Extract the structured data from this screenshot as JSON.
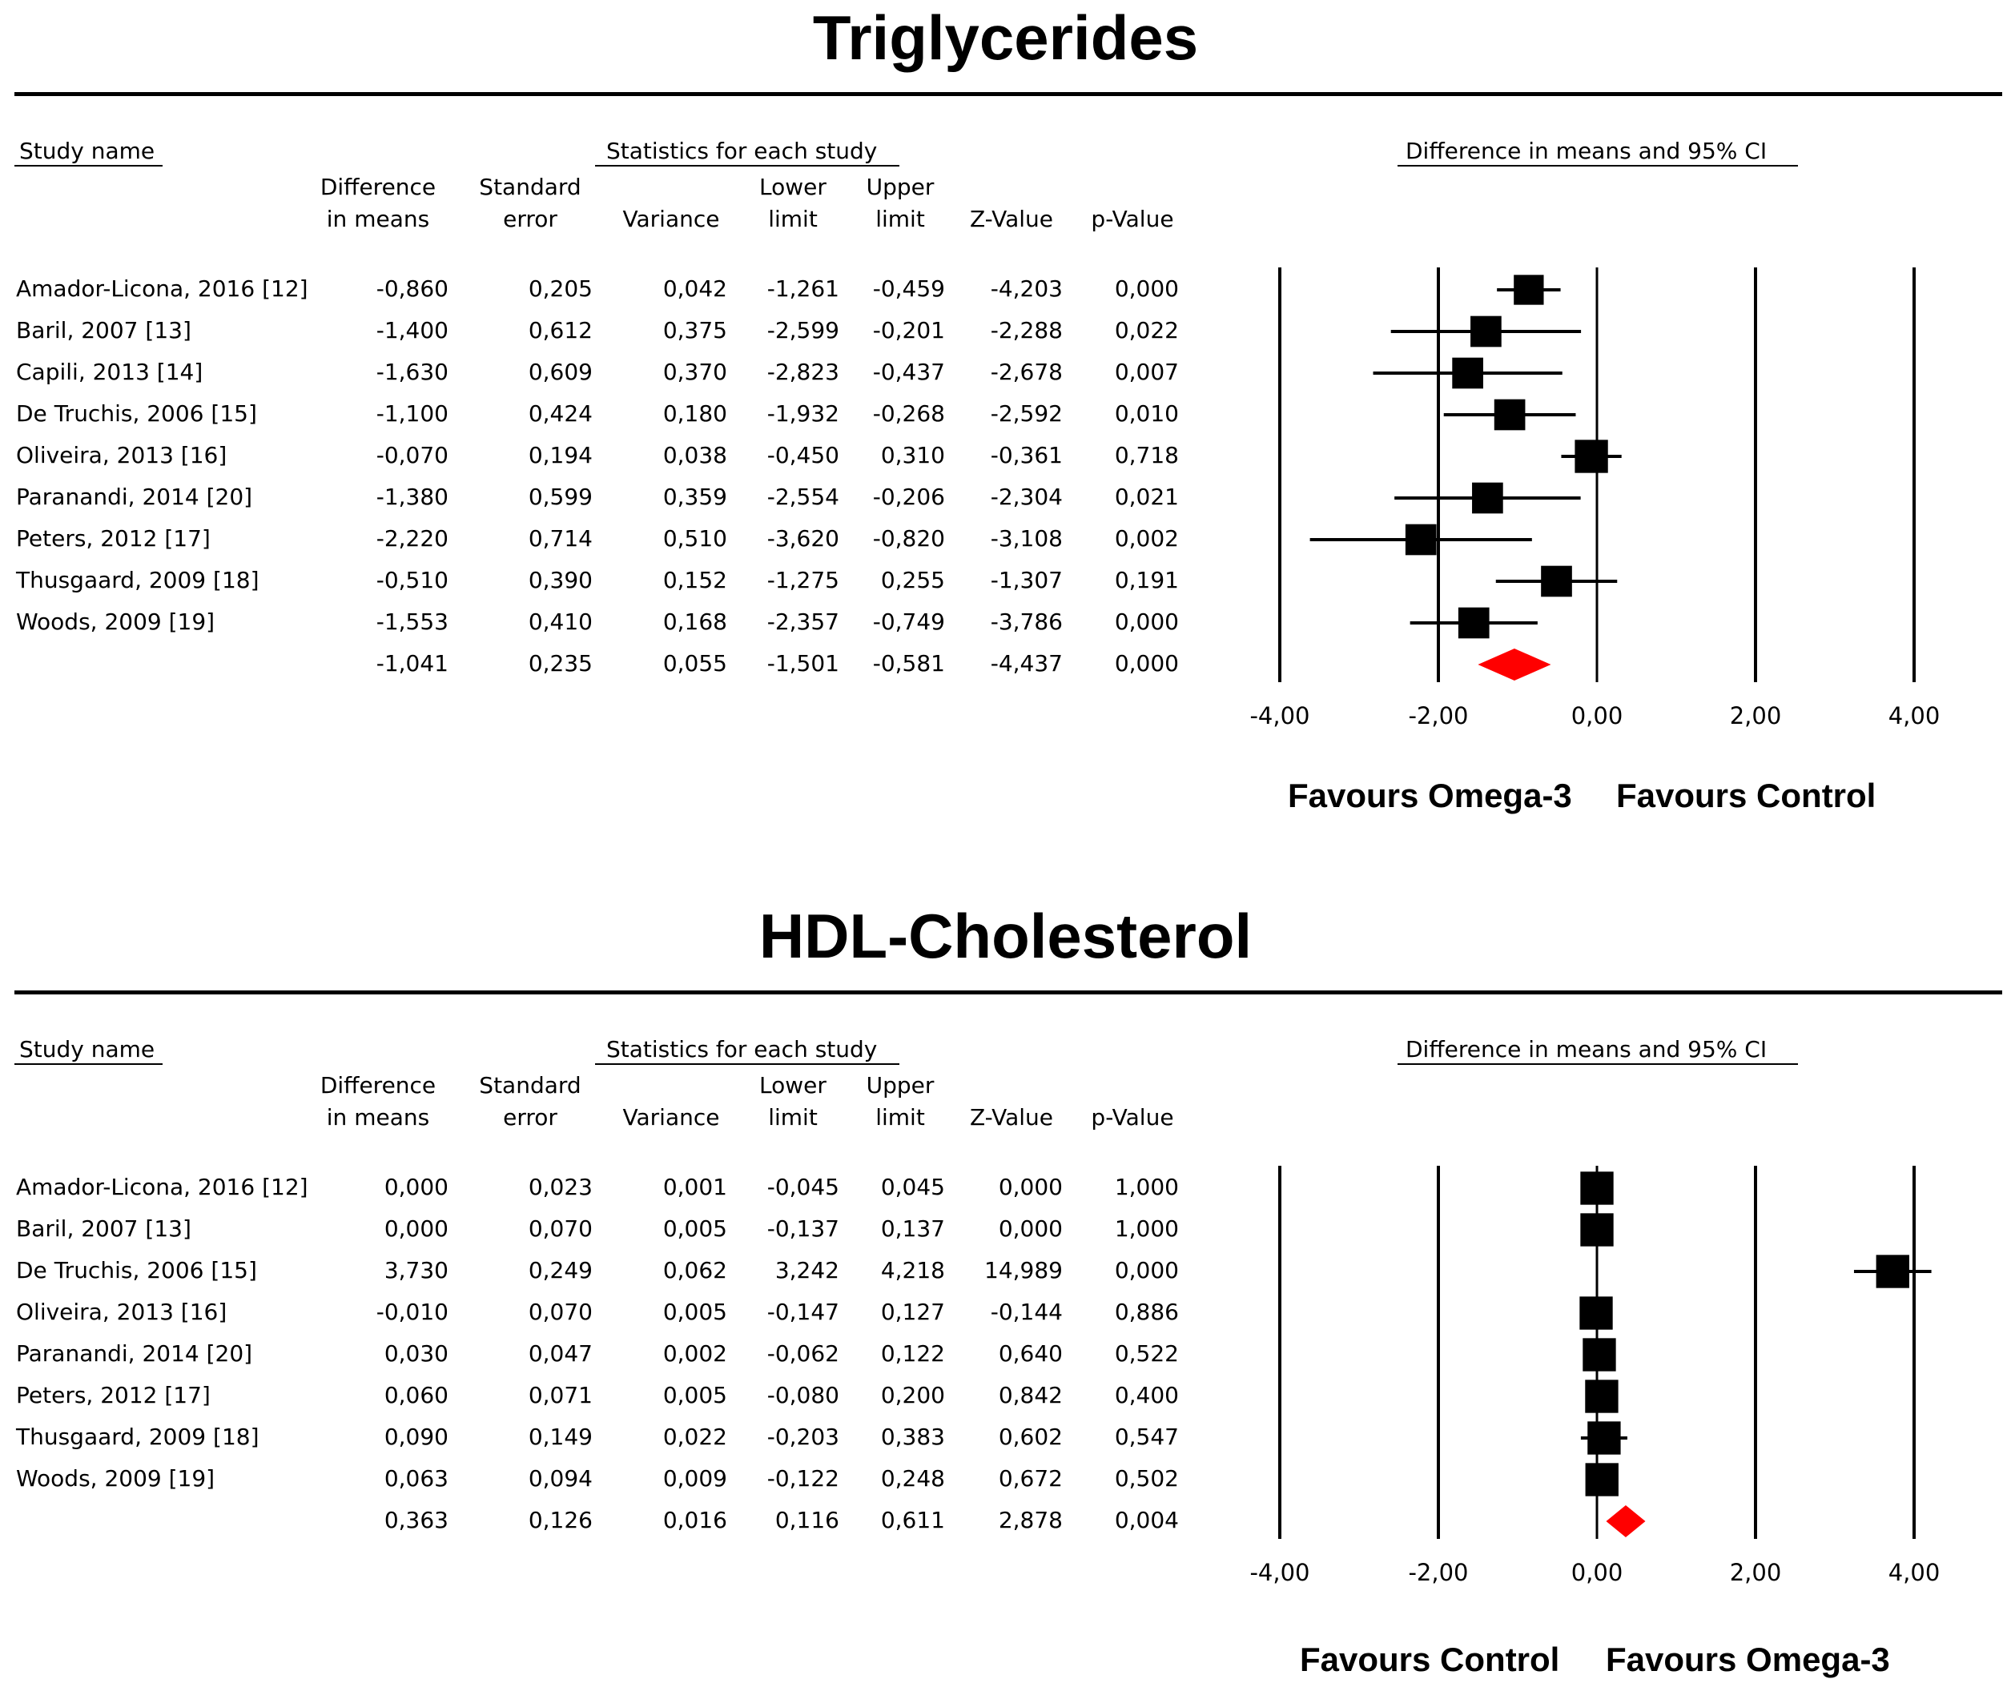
{
  "headers": {
    "study_name": "Study name",
    "statistics": "Statistics for each study",
    "ci": "Difference in means and 95% CI",
    "columns": [
      [
        "Difference",
        "in means"
      ],
      [
        "Standard",
        "error"
      ],
      [
        "",
        "Variance"
      ],
      [
        "Lower",
        "limit"
      ],
      [
        "Upper",
        "limit"
      ],
      [
        "",
        "Z-Value"
      ],
      [
        "",
        "p-Value"
      ]
    ]
  },
  "chart_data": [
    {
      "type": "table",
      "plot": "forest",
      "title": "Triglycerides",
      "xlim": [
        -4,
        4
      ],
      "ticks": [
        "-4,00",
        "-2,00",
        "0,00",
        "2,00",
        "4,00"
      ],
      "tick_values": [
        -4,
        -2,
        0,
        2,
        4
      ],
      "favours_left": "Favours Omega-3",
      "favours_right": "Favours Control",
      "summary_color": "#ff0000",
      "studies": [
        {
          "name": "Amador-Licona, 2016 [12]",
          "diff": "-0,860",
          "se": "0,205",
          "var": "0,042",
          "lower": "-1,261",
          "upper": "-0,459",
          "z": "-4,203",
          "p": "0,000",
          "d": -0.86,
          "lo": -1.261,
          "hi": -0.459,
          "size": 0.56
        },
        {
          "name": "Baril, 2007 [13]",
          "diff": "-1,400",
          "se": "0,612",
          "var": "0,375",
          "lower": "-2,599",
          "upper": "-0,201",
          "z": "-2,288",
          "p": "0,022",
          "d": -1.4,
          "lo": -2.599,
          "hi": -0.201,
          "size": 0.58
        },
        {
          "name": "Capili, 2013 [14]",
          "diff": "-1,630",
          "se": "0,609",
          "var": "0,370",
          "lower": "-2,823",
          "upper": "-0,437",
          "z": "-2,678",
          "p": "0,007",
          "d": -1.63,
          "lo": -2.823,
          "hi": -0.437,
          "size": 0.58
        },
        {
          "name": "De Truchis, 2006 [15]",
          "diff": "-1,100",
          "se": "0,424",
          "var": "0,180",
          "lower": "-1,932",
          "upper": "-0,268",
          "z": "-2,592",
          "p": "0,010",
          "d": -1.1,
          "lo": -1.932,
          "hi": -0.268,
          "size": 0.58
        },
        {
          "name": "Oliveira, 2013 [16]",
          "diff": "-0,070",
          "se": "0,194",
          "var": "0,038",
          "lower": "-0,450",
          "upper": "0,310",
          "z": "-0,361",
          "p": "0,718",
          "d": -0.07,
          "lo": -0.45,
          "hi": 0.31,
          "size": 0.62
        },
        {
          "name": "Paranandi, 2014 [20]",
          "diff": "-1,380",
          "se": "0,599",
          "var": "0,359",
          "lower": "-2,554",
          "upper": "-0,206",
          "z": "-2,304",
          "p": "0,021",
          "d": -1.38,
          "lo": -2.554,
          "hi": -0.206,
          "size": 0.58
        },
        {
          "name": "Peters, 2012 [17]",
          "diff": "-2,220",
          "se": "0,714",
          "var": "0,510",
          "lower": "-3,620",
          "upper": "-0,820",
          "z": "-3,108",
          "p": "0,002",
          "d": -2.22,
          "lo": -3.62,
          "hi": -0.82,
          "size": 0.58
        },
        {
          "name": "Thusgaard, 2009 [18]",
          "diff": "-0,510",
          "se": "0,390",
          "var": "0,152",
          "lower": "-1,275",
          "upper": "0,255",
          "z": "-1,307",
          "p": "0,191",
          "d": -0.51,
          "lo": -1.275,
          "hi": 0.255,
          "size": 0.58
        },
        {
          "name": "Woods, 2009 [19]",
          "diff": "-1,553",
          "se": "0,410",
          "var": "0,168",
          "lower": "-2,357",
          "upper": "-0,749",
          "z": "-3,786",
          "p": "0,000",
          "d": -1.553,
          "lo": -2.357,
          "hi": -0.749,
          "size": 0.58
        }
      ],
      "summary": {
        "diff": "-1,041",
        "se": "0,235",
        "var": "0,055",
        "lower": "-1,501",
        "upper": "-0,581",
        "z": "-4,437",
        "p": "0,000",
        "d": -1.041,
        "lo": -1.501,
        "hi": -0.581
      }
    },
    {
      "type": "table",
      "plot": "forest",
      "title": "HDL-Cholesterol",
      "xlim": [
        -4,
        4
      ],
      "ticks": [
        "-4,00",
        "-2,00",
        "0,00",
        "2,00",
        "4,00"
      ],
      "tick_values": [
        -4,
        -2,
        0,
        2,
        4
      ],
      "favours_left": "Favours Control",
      "favours_right": "Favours Omega-3",
      "summary_color": "#ff0000",
      "studies": [
        {
          "name": "Amador-Licona, 2016 [12]",
          "diff": "0,000",
          "se": "0,023",
          "var": "0,001",
          "lower": "-0,045",
          "upper": "0,045",
          "z": "0,000",
          "p": "1,000",
          "d": 0.0,
          "lo": -0.045,
          "hi": 0.045,
          "size": 0.62
        },
        {
          "name": "Baril, 2007 [13]",
          "diff": "0,000",
          "se": "0,070",
          "var": "0,005",
          "lower": "-0,137",
          "upper": "0,137",
          "z": "0,000",
          "p": "1,000",
          "d": 0.0,
          "lo": -0.137,
          "hi": 0.137,
          "size": 0.62
        },
        {
          "name": "De Truchis, 2006 [15]",
          "diff": "3,730",
          "se": "0,249",
          "var": "0,062",
          "lower": "3,242",
          "upper": "4,218",
          "z": "14,989",
          "p": "0,000",
          "d": 3.73,
          "lo": 3.242,
          "hi": 4.218,
          "size": 0.62
        },
        {
          "name": "Oliveira, 2013 [16]",
          "diff": "-0,010",
          "se": "0,070",
          "var": "0,005",
          "lower": "-0,147",
          "upper": "0,127",
          "z": "-0,144",
          "p": "0,886",
          "d": -0.01,
          "lo": -0.147,
          "hi": 0.127,
          "size": 0.62
        },
        {
          "name": "Paranandi, 2014 [20]",
          "diff": "0,030",
          "se": "0,047",
          "var": "0,002",
          "lower": "-0,062",
          "upper": "0,122",
          "z": "0,640",
          "p": "0,522",
          "d": 0.03,
          "lo": -0.062,
          "hi": 0.122,
          "size": 0.62
        },
        {
          "name": "Peters, 2012 [17]",
          "diff": "0,060",
          "se": "0,071",
          "var": "0,005",
          "lower": "-0,080",
          "upper": "0,200",
          "z": "0,842",
          "p": "0,400",
          "d": 0.06,
          "lo": -0.08,
          "hi": 0.2,
          "size": 0.62
        },
        {
          "name": "Thusgaard, 2009 [18]",
          "diff": "0,090",
          "se": "0,149",
          "var": "0,022",
          "lower": "-0,203",
          "upper": "0,383",
          "z": "0,602",
          "p": "0,547",
          "d": 0.09,
          "lo": -0.203,
          "hi": 0.383,
          "size": 0.62
        },
        {
          "name": "Woods, 2009 [19]",
          "diff": "0,063",
          "se": "0,094",
          "var": "0,009",
          "lower": "-0,122",
          "upper": "0,248",
          "z": "0,672",
          "p": "0,502",
          "d": 0.063,
          "lo": -0.122,
          "hi": 0.248,
          "size": 0.62
        }
      ],
      "summary": {
        "diff": "0,363",
        "se": "0,126",
        "var": "0,016",
        "lower": "0,116",
        "upper": "0,611",
        "z": "2,878",
        "p": "0,004",
        "d": 0.363,
        "lo": 0.116,
        "hi": 0.611
      }
    }
  ]
}
